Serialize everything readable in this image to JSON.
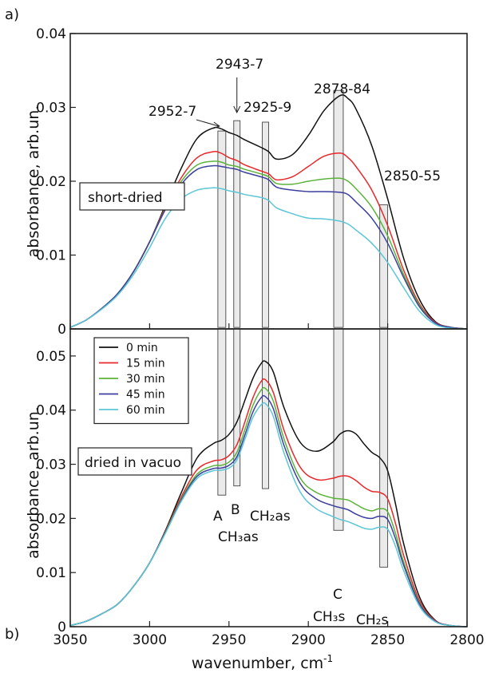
{
  "chart_data": {
    "type": "line",
    "xlabel": "wavenumber, cm",
    "xlabel_sup": "-1",
    "xlim": [
      3050,
      2800
    ],
    "x_ticks": [
      "3050",
      "3000",
      "2950",
      "2900",
      "2850",
      "2800"
    ],
    "x_tick_values": [
      3050,
      3000,
      2950,
      2900,
      2850,
      2800
    ],
    "colors": {
      "0 min": "#111111",
      "15 min": "#e8282a",
      "30 min": "#5bb33a",
      "45 min": "#3b3f9e",
      "60 min": "#5cc6d6"
    },
    "bands": [
      {
        "id": "A",
        "range": [
          2952,
          2957
        ]
      },
      {
        "id": "B",
        "range": [
          2943,
          2947
        ]
      },
      {
        "id": "CH2as",
        "range": [
          2925,
          2929
        ]
      },
      {
        "id": "C",
        "range": [
          2878,
          2884
        ]
      },
      {
        "id": "CH2s",
        "range": [
          2850,
          2855
        ]
      }
    ],
    "panels": [
      {
        "tag": "a)",
        "box_label": "short-dried",
        "ylabel": "absorbance, arb.un.",
        "ylim": [
          0,
          0.04
        ],
        "y_ticks": [
          "0",
          "0.01",
          "0.02",
          "0.03",
          "0.04"
        ],
        "y_tick_values": [
          0,
          0.01,
          0.02,
          0.03,
          0.04
        ],
        "annotations": [
          {
            "text": "2952-7"
          },
          {
            "text": "2943-7"
          },
          {
            "text": "2925-9"
          },
          {
            "text": "2878-84"
          },
          {
            "text": "2850-55"
          }
        ],
        "x": [
          3050,
          3040,
          3030,
          3020,
          3010,
          3000,
          2990,
          2980,
          2970,
          2960,
          2955,
          2950,
          2945,
          2940,
          2930,
          2925,
          2920,
          2910,
          2900,
          2890,
          2880,
          2875,
          2870,
          2860,
          2850,
          2840,
          2830,
          2820,
          2810,
          2800
        ],
        "series": [
          {
            "name": "0 min",
            "values": [
              0.0002,
              0.0012,
              0.0028,
              0.0048,
              0.0078,
              0.0118,
              0.0168,
              0.0218,
              0.0258,
              0.0272,
              0.0271,
              0.0266,
              0.0262,
              0.0256,
              0.0246,
              0.024,
              0.023,
              0.0236,
              0.0262,
              0.0296,
              0.0316,
              0.0312,
              0.0298,
              0.0248,
              0.0176,
              0.0096,
              0.004,
              0.001,
              0.0002,
              0.0
            ]
          },
          {
            "name": "15 min",
            "values": [
              0.0002,
              0.0012,
              0.0028,
              0.0048,
              0.0078,
              0.0118,
              0.0165,
              0.0205,
              0.0232,
              0.024,
              0.0238,
              0.0232,
              0.0228,
              0.0222,
              0.0214,
              0.021,
              0.0202,
              0.0206,
              0.022,
              0.0234,
              0.0238,
              0.0232,
              0.022,
              0.0188,
              0.014,
              0.008,
              0.0034,
              0.0009,
              0.0002,
              0.0
            ]
          },
          {
            "name": "30 min",
            "values": [
              0.0002,
              0.0012,
              0.0028,
              0.0048,
              0.0078,
              0.0118,
              0.0163,
              0.02,
              0.0222,
              0.0227,
              0.0226,
              0.0222,
              0.022,
              0.0216,
              0.021,
              0.0206,
              0.0197,
              0.0196,
              0.02,
              0.0203,
              0.0204,
              0.02,
              0.019,
              0.0165,
              0.0126,
              0.0074,
              0.0032,
              0.0008,
              0.0002,
              0.0
            ]
          },
          {
            "name": "45 min",
            "values": [
              0.0002,
              0.0012,
              0.0028,
              0.0048,
              0.0078,
              0.0118,
              0.0162,
              0.0196,
              0.0216,
              0.0221,
              0.022,
              0.0218,
              0.0216,
              0.0212,
              0.0206,
              0.0202,
              0.0192,
              0.0188,
              0.0186,
              0.0186,
              0.0185,
              0.0182,
              0.0172,
              0.015,
              0.0116,
              0.007,
              0.003,
              0.0008,
              0.0002,
              0.0
            ]
          },
          {
            "name": "60 min",
            "values": [
              0.0002,
              0.0012,
              0.0027,
              0.0046,
              0.0074,
              0.011,
              0.015,
              0.0176,
              0.0188,
              0.0191,
              0.019,
              0.0187,
              0.0185,
              0.0182,
              0.0178,
              0.0174,
              0.0164,
              0.0156,
              0.015,
              0.0149,
              0.0146,
              0.0142,
              0.0134,
              0.0116,
              0.009,
              0.0056,
              0.0024,
              0.0006,
              0.0001,
              0.0
            ]
          }
        ]
      },
      {
        "tag": "b)",
        "box_label": "dried in vacuo",
        "ylabel": "absorbance, arb.un.",
        "ylim": [
          0,
          0.055
        ],
        "y_ticks": [
          "0",
          "0.01",
          "0.02",
          "0.03",
          "0.04",
          "0.05"
        ],
        "y_tick_values": [
          0,
          0.01,
          0.02,
          0.03,
          0.04,
          0.05
        ],
        "band_labels": [
          {
            "text": "A"
          },
          {
            "text": "B"
          },
          {
            "text": "CH₃as"
          },
          {
            "text": "CH₂as"
          },
          {
            "text": "C"
          },
          {
            "text": "CH₃s"
          },
          {
            "text": "CH₂s"
          }
        ],
        "legend": [
          "0 min",
          "15 min",
          "30 min",
          "45 min",
          "60 min"
        ],
        "x": [
          3050,
          3040,
          3030,
          3020,
          3010,
          3000,
          2990,
          2980,
          2970,
          2960,
          2955,
          2950,
          2945,
          2940,
          2935,
          2930,
          2927,
          2922,
          2915,
          2905,
          2895,
          2885,
          2880,
          2875,
          2870,
          2865,
          2860,
          2855,
          2850,
          2845,
          2840,
          2830,
          2820,
          2810,
          2800
        ],
        "series": [
          {
            "name": "0 min",
            "values": [
              0.0002,
              0.001,
              0.0024,
              0.0042,
              0.0075,
              0.0118,
              0.0178,
              0.0248,
              0.0312,
              0.0338,
              0.0344,
              0.0355,
              0.0378,
              0.0418,
              0.0458,
              0.0485,
              0.049,
              0.047,
              0.0402,
              0.034,
              0.0324,
              0.034,
              0.0356,
              0.0362,
              0.0356,
              0.0338,
              0.0322,
              0.0312,
              0.0288,
              0.0226,
              0.0154,
              0.0055,
              0.0012,
              0.0002,
              0.0
            ]
          },
          {
            "name": "15 min",
            "values": [
              0.0002,
              0.001,
              0.0024,
              0.0042,
              0.0075,
              0.0118,
              0.0176,
              0.024,
              0.029,
              0.0306,
              0.0308,
              0.0316,
              0.0336,
              0.0378,
              0.0422,
              0.0452,
              0.0456,
              0.0432,
              0.036,
              0.0294,
              0.0272,
              0.0274,
              0.0278,
              0.0278,
              0.027,
              0.0258,
              0.025,
              0.0248,
              0.0236,
              0.019,
              0.0132,
              0.0048,
              0.0011,
              0.0002,
              0.0
            ]
          },
          {
            "name": "30 min",
            "values": [
              0.0002,
              0.001,
              0.0024,
              0.0042,
              0.0075,
              0.0118,
              0.0175,
              0.0236,
              0.0282,
              0.0297,
              0.0298,
              0.0304,
              0.0322,
              0.0364,
              0.0408,
              0.0436,
              0.044,
              0.0416,
              0.0344,
              0.0274,
              0.0248,
              0.0238,
              0.0236,
              0.0234,
              0.0226,
              0.0218,
              0.0214,
              0.0218,
              0.0212,
              0.0172,
              0.012,
              0.0044,
              0.001,
              0.0002,
              0.0
            ]
          },
          {
            "name": "45 min",
            "values": [
              0.0002,
              0.001,
              0.0024,
              0.0042,
              0.0075,
              0.0118,
              0.0174,
              0.0234,
              0.0278,
              0.0292,
              0.0293,
              0.0298,
              0.0314,
              0.0354,
              0.0396,
              0.0422,
              0.0425,
              0.0402,
              0.0332,
              0.0264,
              0.0236,
              0.0224,
              0.022,
              0.0216,
              0.0208,
              0.0202,
              0.02,
              0.0204,
              0.0198,
              0.0162,
              0.0114,
              0.0042,
              0.001,
              0.0002,
              0.0
            ]
          },
          {
            "name": "60 min",
            "values": [
              0.0002,
              0.001,
              0.0024,
              0.0042,
              0.0075,
              0.0118,
              0.0173,
              0.0232,
              0.0274,
              0.0288,
              0.0289,
              0.0293,
              0.0308,
              0.0346,
              0.0386,
              0.0409,
              0.0412,
              0.0388,
              0.0318,
              0.0248,
              0.0218,
              0.0204,
              0.0198,
              0.0194,
              0.0188,
              0.0182,
              0.018,
              0.0184,
              0.018,
              0.0148,
              0.0104,
              0.0038,
              0.0009,
              0.0002,
              0.0
            ]
          }
        ]
      }
    ]
  }
}
